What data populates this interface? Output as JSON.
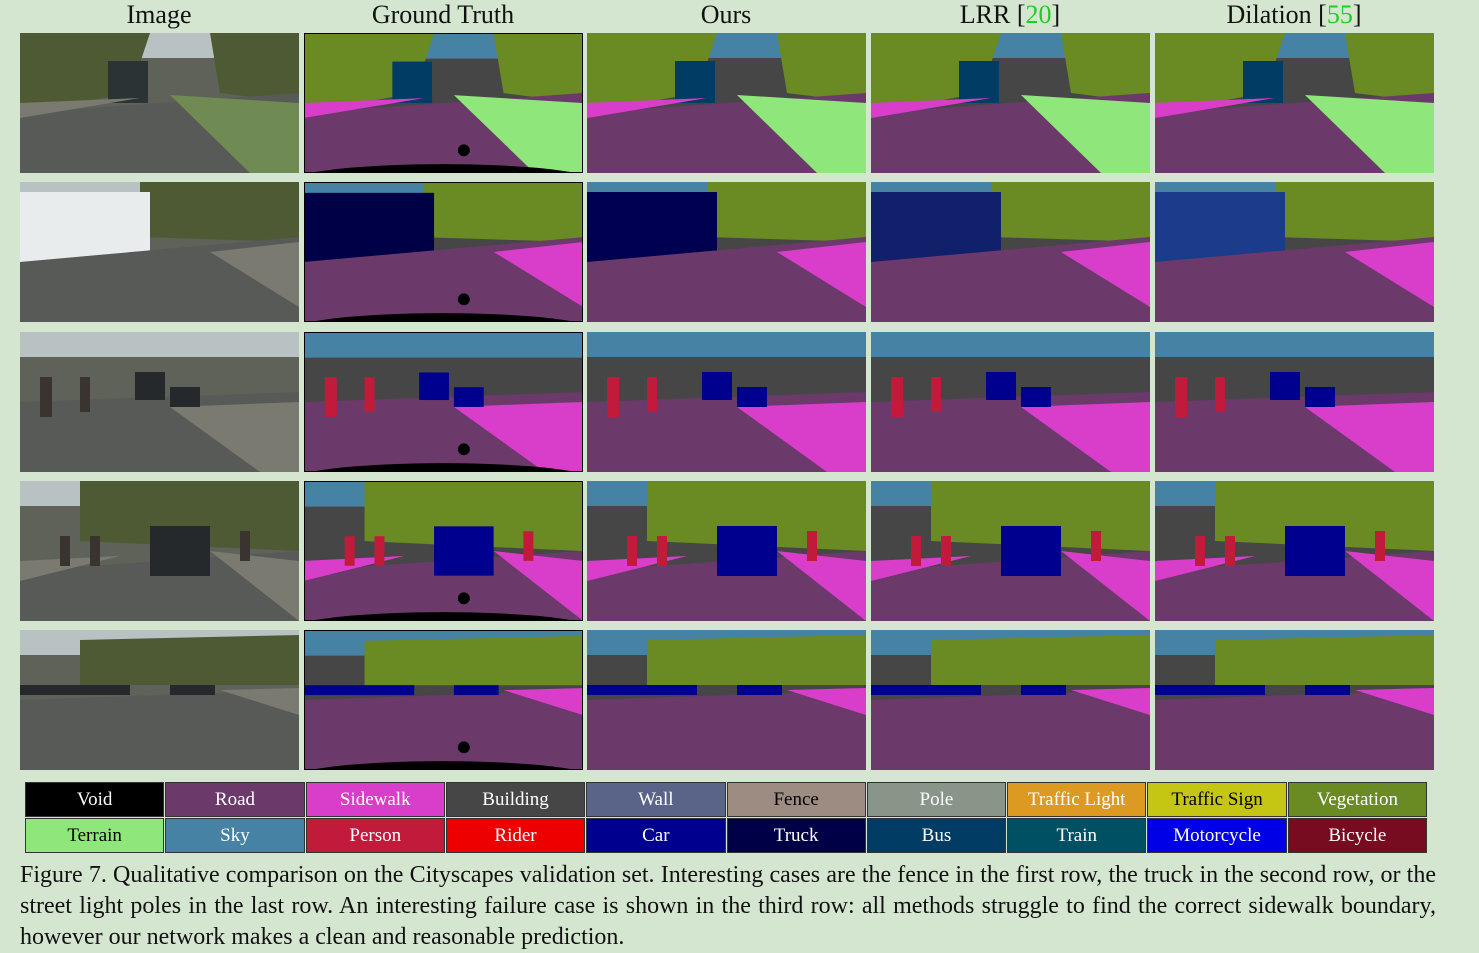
{
  "columns": [
    {
      "label": "Image",
      "ref": ""
    },
    {
      "label": "Ground Truth",
      "ref": ""
    },
    {
      "label": "Ours",
      "ref": ""
    },
    {
      "label": "LRR [",
      "ref": "20",
      "close": "]"
    },
    {
      "label": "Dilation [",
      "ref": "55",
      "close": "]"
    }
  ],
  "legend": [
    {
      "label": "Void",
      "color": "#000000",
      "text": "#ffffff"
    },
    {
      "label": "Road",
      "color": "#6b3a6b",
      "text": "#ffffff"
    },
    {
      "label": "Sidewalk",
      "color": "#d93ecb",
      "text": "#ffffff"
    },
    {
      "label": "Building",
      "color": "#464646",
      "text": "#ffffff"
    },
    {
      "label": "Wall",
      "color": "#5a6488",
      "text": "#ffffff"
    },
    {
      "label": "Fence",
      "color": "#9c8c82",
      "text": "#000000"
    },
    {
      "label": "Pole",
      "color": "#8a958a",
      "text": "#ffffff"
    },
    {
      "label": "Traffic Light",
      "color": "#dc9a22",
      "text": "#ffffff"
    },
    {
      "label": "Traffic Sign",
      "color": "#c5c514",
      "text": "#000000"
    },
    {
      "label": "Vegetation",
      "color": "#6a8a24",
      "text": "#ffffff"
    },
    {
      "label": "Terrain",
      "color": "#8fe67a",
      "text": "#000000"
    },
    {
      "label": "Sky",
      "color": "#4682a4",
      "text": "#ffffff"
    },
    {
      "label": "Person",
      "color": "#c21a3a",
      "text": "#ffffff"
    },
    {
      "label": "Rider",
      "color": "#ee0000",
      "text": "#ffffff"
    },
    {
      "label": "Car",
      "color": "#00008e",
      "text": "#ffffff"
    },
    {
      "label": "Truck",
      "color": "#000046",
      "text": "#ffffff"
    },
    {
      "label": "Bus",
      "color": "#003c64",
      "text": "#ffffff"
    },
    {
      "label": "Train",
      "color": "#005064",
      "text": "#ffffff"
    },
    {
      "label": "Motorcycle",
      "color": "#0000e6",
      "text": "#ffffff"
    },
    {
      "label": "Bicycle",
      "color": "#770b20",
      "text": "#ffffff"
    }
  ],
  "caption": "Figure 7. Qualitative comparison on the Cityscapes validation set. Interesting cases are the fence in the first row, the truck in the second row, or the street light poles in the last row. An interesting failure case is shown in the third row: all methods struggle to find the correct sidewalk boundary, however our network makes a clean and reasonable prediction."
}
